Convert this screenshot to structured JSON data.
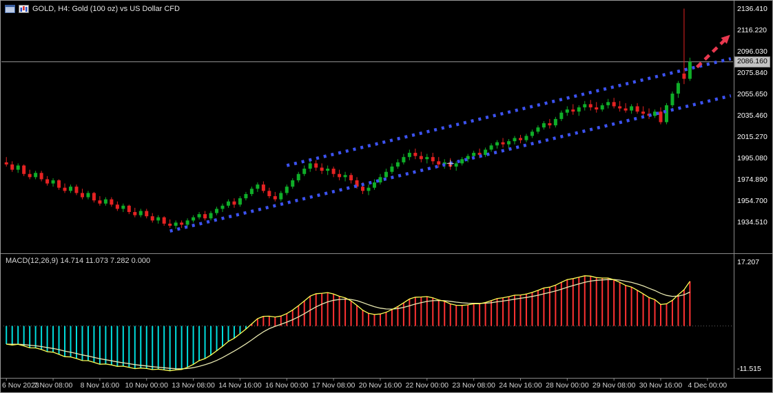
{
  "window": {
    "title": "GOLD, H4:  Gold (100 oz) vs US Dollar CFD"
  },
  "colors": {
    "background": "#000000",
    "up": "#0fae28",
    "down": "#e62222",
    "channel": "#3c52f0",
    "arrow": "#e8384f",
    "price_line": "#9a9a9a",
    "price_box_bg": "#c4c4c4",
    "hist_pos": "#ff3232",
    "hist_neg": "#00dede",
    "macd_line": "#ffff55",
    "signal_line": "#e8e8b0",
    "separator": "#8a8a8a",
    "axis_text": "#ffffff"
  },
  "chart_data": [
    {
      "type": "candlestick",
      "symbol": "GOLD",
      "timeframe": "H4",
      "title": "GOLD, H4:  Gold (100 oz) vs US Dollar CFD",
      "current_price": 2086.16,
      "current_price_label": "2086.160",
      "ylim": [
        1906,
        2140
      ],
      "y_ticks": [
        "2136.410",
        "2116.220",
        "2096.030",
        "2075.840",
        "2055.650",
        "2035.460",
        "2015.270",
        "1995.080",
        "1974.890",
        "1954.700",
        "1934.510"
      ],
      "x_ticks": [
        {
          "text": "6 Nov 2023",
          "bar": 0
        },
        {
          "text": "7 Nov 08:00",
          "bar": 8
        },
        {
          "text": "8 Nov 16:00",
          "bar": 16
        },
        {
          "text": "10 Nov 00:00",
          "bar": 24
        },
        {
          "text": "13 Nov 08:00",
          "bar": 32
        },
        {
          "text": "14 Nov 16:00",
          "bar": 40
        },
        {
          "text": "16 Nov 00:00",
          "bar": 48
        },
        {
          "text": "17 Nov 08:00",
          "bar": 56
        },
        {
          "text": "20 Nov 16:00",
          "bar": 64
        },
        {
          "text": "22 Nov 00:00",
          "bar": 72
        },
        {
          "text": "23 Nov 08:00",
          "bar": 80
        },
        {
          "text": "24 Nov 16:00",
          "bar": 88
        },
        {
          "text": "28 Nov 00:00",
          "bar": 96
        },
        {
          "text": "29 Nov 08:00",
          "bar": 104
        },
        {
          "text": "30 Nov 16:00",
          "bar": 112
        },
        {
          "text": "4 Dec 00:00",
          "bar": 120
        }
      ],
      "candles": [
        [
          1991,
          1996,
          1987,
          1989
        ],
        [
          1989,
          1992,
          1982,
          1984
        ],
        [
          1984,
          1990,
          1981,
          1988
        ],
        [
          1988,
          1989,
          1978,
          1980
        ],
        [
          1980,
          1984,
          1975,
          1977
        ],
        [
          1977,
          1983,
          1975,
          1981
        ],
        [
          1981,
          1983,
          1973,
          1975
        ],
        [
          1975,
          1978,
          1969,
          1971
        ],
        [
          1971,
          1976,
          1968,
          1974
        ],
        [
          1974,
          1975,
          1965,
          1967
        ],
        [
          1967,
          1971,
          1962,
          1964
        ],
        [
          1964,
          1970,
          1962,
          1968
        ],
        [
          1968,
          1970,
          1960,
          1962
        ],
        [
          1962,
          1966,
          1956,
          1958
        ],
        [
          1958,
          1964,
          1956,
          1962
        ],
        [
          1962,
          1963,
          1953,
          1955
        ],
        [
          1955,
          1959,
          1950,
          1952
        ],
        [
          1952,
          1958,
          1950,
          1956
        ],
        [
          1956,
          1958,
          1949,
          1951
        ],
        [
          1951,
          1954,
          1945,
          1947
        ],
        [
          1947,
          1952,
          1944,
          1950
        ],
        [
          1950,
          1951,
          1942,
          1944
        ],
        [
          1944,
          1948,
          1939,
          1941
        ],
        [
          1941,
          1947,
          1939,
          1945
        ],
        [
          1945,
          1947,
          1938,
          1940
        ],
        [
          1940,
          1943,
          1934,
          1936
        ],
        [
          1936,
          1941,
          1933,
          1939
        ],
        [
          1939,
          1940,
          1931,
          1933
        ],
        [
          1933,
          1937,
          1929,
          1931
        ],
        [
          1931,
          1936,
          1928,
          1934
        ],
        [
          1934,
          1936,
          1929,
          1932
        ],
        [
          1932,
          1938,
          1930,
          1936
        ],
        [
          1936,
          1941,
          1934,
          1939
        ],
        [
          1939,
          1944,
          1937,
          1942
        ],
        [
          1942,
          1945,
          1936,
          1938
        ],
        [
          1938,
          1945,
          1936,
          1943
        ],
        [
          1943,
          1949,
          1941,
          1947
        ],
        [
          1947,
          1952,
          1944,
          1950
        ],
        [
          1950,
          1956,
          1948,
          1954
        ],
        [
          1954,
          1957,
          1948,
          1951
        ],
        [
          1951,
          1959,
          1949,
          1957
        ],
        [
          1957,
          1963,
          1955,
          1961
        ],
        [
          1961,
          1968,
          1959,
          1966
        ],
        [
          1966,
          1972,
          1963,
          1970
        ],
        [
          1970,
          1973,
          1962,
          1964
        ],
        [
          1964,
          1967,
          1957,
          1959
        ],
        [
          1959,
          1963,
          1954,
          1956
        ],
        [
          1956,
          1964,
          1954,
          1962
        ],
        [
          1962,
          1970,
          1960,
          1968
        ],
        [
          1968,
          1976,
          1966,
          1974
        ],
        [
          1974,
          1982,
          1972,
          1980
        ],
        [
          1980,
          1988,
          1978,
          1985
        ],
        [
          1985,
          1992,
          1982,
          1990
        ],
        [
          1990,
          1993,
          1983,
          1986
        ],
        [
          1986,
          1990,
          1980,
          1983
        ],
        [
          1983,
          1988,
          1979,
          1985
        ],
        [
          1985,
          1987,
          1977,
          1980
        ],
        [
          1980,
          1984,
          1974,
          1977
        ],
        [
          1977,
          1982,
          1973,
          1979
        ],
        [
          1979,
          1981,
          1971,
          1974
        ],
        [
          1974,
          1977,
          1966,
          1968
        ],
        [
          1968,
          1972,
          1961,
          1964
        ],
        [
          1964,
          1970,
          1960,
          1967
        ],
        [
          1967,
          1975,
          1965,
          1972
        ],
        [
          1972,
          1980,
          1970,
          1977
        ],
        [
          1977,
          1985,
          1975,
          1982
        ],
        [
          1982,
          1990,
          1980,
          1987
        ],
        [
          1987,
          1994,
          1985,
          1991
        ],
        [
          1991,
          1999,
          1989,
          1996
        ],
        [
          1996,
          2003,
          1993,
          2000
        ],
        [
          2000,
          2004,
          1994,
          1997
        ],
        [
          1997,
          2001,
          1991,
          1994
        ],
        [
          1994,
          1999,
          1990,
          1996
        ],
        [
          1996,
          2000,
          1989,
          1992
        ],
        [
          1992,
          1996,
          1986,
          1989
        ],
        [
          1989,
          1994,
          1985,
          1991
        ],
        [
          1991,
          1995,
          1984,
          1987
        ],
        [
          1987,
          1992,
          1983,
          1990
        ],
        [
          1990,
          1996,
          1988,
          1994
        ],
        [
          1994,
          1999,
          1991,
          1997
        ],
        [
          1997,
          2002,
          1994,
          2000
        ],
        [
          2000,
          2004,
          1995,
          1998
        ],
        [
          1998,
          2005,
          1996,
          2003
        ],
        [
          2003,
          2009,
          2001,
          2007
        ],
        [
          2007,
          2012,
          2004,
          2010
        ],
        [
          2010,
          2014,
          2005,
          2008
        ],
        [
          2008,
          2013,
          2004,
          2011
        ],
        [
          2011,
          2016,
          2008,
          2014
        ],
        [
          2014,
          2017,
          2009,
          2012
        ],
        [
          2012,
          2018,
          2010,
          2016
        ],
        [
          2016,
          2022,
          2014,
          2020
        ],
        [
          2020,
          2026,
          2018,
          2024
        ],
        [
          2024,
          2030,
          2022,
          2028
        ],
        [
          2028,
          2032,
          2023,
          2026
        ],
        [
          2026,
          2034,
          2024,
          2032
        ],
        [
          2032,
          2040,
          2030,
          2038
        ],
        [
          2038,
          2044,
          2035,
          2041
        ],
        [
          2041,
          2046,
          2036,
          2039
        ],
        [
          2039,
          2045,
          2035,
          2043
        ],
        [
          2043,
          2049,
          2040,
          2046
        ],
        [
          2046,
          2050,
          2040,
          2043
        ],
        [
          2043,
          2048,
          2038,
          2041
        ],
        [
          2041,
          2047,
          2039,
          2045
        ],
        [
          2045,
          2051,
          2042,
          2048
        ],
        [
          2048,
          2052,
          2042,
          2044
        ],
        [
          2044,
          2049,
          2039,
          2042
        ],
        [
          2042,
          2047,
          2038,
          2040
        ],
        [
          2040,
          2046,
          2037,
          2044
        ],
        [
          2044,
          2047,
          2037,
          2039
        ],
        [
          2039,
          2044,
          2034,
          2037
        ],
        [
          2037,
          2042,
          2032,
          2035
        ],
        [
          2035,
          2041,
          2033,
          2039
        ],
        [
          2039,
          2043,
          2027,
          2029
        ],
        [
          2029,
          2047,
          2027,
          2045
        ],
        [
          2045,
          2058,
          2043,
          2056
        ],
        [
          2056,
          2068,
          2052,
          2066
        ],
        [
          2075,
          2136.41,
          2065,
          2070
        ],
        [
          2070,
          2090,
          2068,
          2086.16
        ]
      ]
    },
    {
      "type": "macd",
      "label": "MACD(12,26,9) 14.714 11.073 7.282 0.000",
      "params": {
        "fast": 12,
        "slow": 26,
        "signal": 9
      },
      "axis_max_label": "17.207",
      "axis_min_label": "-11.515",
      "ylim": [
        -13.2,
        18.6
      ],
      "source": "computed from candlestick closes"
    }
  ],
  "annotations": {
    "channel_lower": {
      "from_bar": 28,
      "from_price": 1926,
      "to_bar": 124,
      "to_price": 2054
    },
    "channel_upper": {
      "from_bar": 48,
      "from_price": 1988,
      "to_bar": 124,
      "to_price": 2089
    },
    "breakout_arrow": {
      "from_bar": 118.2,
      "from_price": 2081,
      "to_bar": 123.2,
      "to_price": 2108
    },
    "crosshair": {
      "bar": 76,
      "price": 1990
    }
  }
}
